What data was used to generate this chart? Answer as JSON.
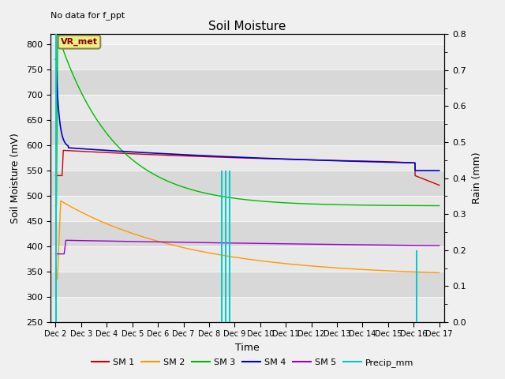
{
  "title": "Soil Moisture",
  "annotation": "No data for f_ppt",
  "xlabel": "Time",
  "ylabel_left": "Soil Moisture (mV)",
  "ylabel_right": "Rain (mm)",
  "ylim_left": [
    250,
    820
  ],
  "ylim_right": [
    0.0,
    0.8
  ],
  "yticks_left": [
    250,
    300,
    350,
    400,
    450,
    500,
    550,
    600,
    650,
    700,
    750,
    800
  ],
  "yticks_right": [
    0.0,
    0.1,
    0.2,
    0.3,
    0.4,
    0.5,
    0.6,
    0.7,
    0.8
  ],
  "x_tick_labels": [
    "Dec 2",
    "Dec 3",
    "Dec 4",
    "Dec 5",
    "Dec 6",
    "Dec 7",
    "Dec 8",
    "Dec 9",
    "Dec 10",
    "Dec 11",
    "Dec 12",
    "Dec 13",
    "Dec 14",
    "Dec 15",
    "Dec 16",
    "Dec 17"
  ],
  "bg_color": "#f0f0f0",
  "band_colors": [
    "#e8e8e8",
    "#d8d8d8"
  ],
  "sm1_color": "#cc0000",
  "sm2_color": "#ff9900",
  "sm3_color": "#00bb00",
  "sm4_color": "#0000cc",
  "sm5_color": "#9900cc",
  "precip_color": "#00cccc",
  "vr_met_box_color": "#eeee88",
  "vr_met_text_color": "#880000"
}
